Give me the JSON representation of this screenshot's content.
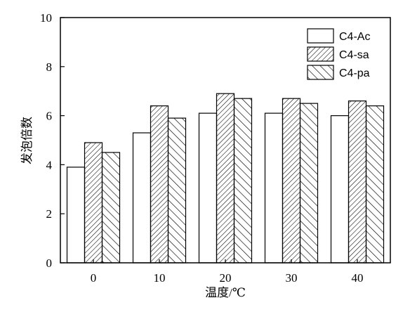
{
  "chart_data": {
    "type": "bar",
    "xlabel": "温度/℃",
    "ylabel": "发泡倍数",
    "categories": [
      "0",
      "10",
      "20",
      "30",
      "40"
    ],
    "series": [
      {
        "name": "C4-Ac",
        "pattern": "blank",
        "values": [
          3.9,
          5.3,
          6.1,
          6.1,
          6.0
        ]
      },
      {
        "name": "C4-sa",
        "pattern": "hatch-dense",
        "values": [
          4.9,
          6.4,
          6.9,
          6.7,
          6.6
        ]
      },
      {
        "name": "C4-pa",
        "pattern": "hatch-wide",
        "values": [
          4.5,
          5.9,
          6.7,
          6.5,
          6.4
        ]
      }
    ],
    "ylim": [
      0,
      10
    ],
    "yticks": [
      0,
      2,
      4,
      6,
      8,
      10
    ],
    "legend_position": "top-right",
    "grid": false
  }
}
